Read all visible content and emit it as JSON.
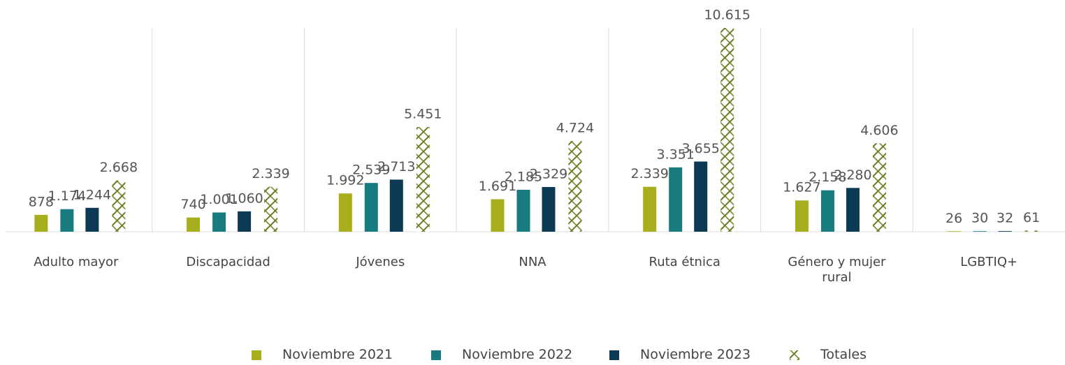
{
  "chart_data": {
    "type": "bar",
    "categories": [
      "Adulto mayor",
      "Discapacidad",
      "Jóvenes",
      "NNA",
      "Ruta étnica",
      "Género y mujer rural",
      "LGBTIQ+"
    ],
    "series": [
      {
        "name": "Noviembre 2021",
        "color": "#a8af1d",
        "values": [
          878,
          740,
          1992,
          1691,
          2339,
          1627,
          26
        ],
        "value_labels": [
          "878",
          "740",
          "1.992",
          "1.691",
          "2.339",
          "1.627",
          "26"
        ]
      },
      {
        "name": "Noviembre 2022",
        "color": "#177b7f",
        "values": [
          1174,
          1001,
          2539,
          2185,
          3351,
          2158,
          30
        ],
        "value_labels": [
          "1.174",
          "1.001",
          "2.539",
          "2.185",
          "3.351",
          "2.158",
          "30"
        ]
      },
      {
        "name": "Noviembre 2023",
        "color": "#0c3a54",
        "values": [
          1244,
          1060,
          2713,
          2329,
          3655,
          2280,
          32
        ],
        "value_labels": [
          "1.244",
          "1.060",
          "2.713",
          "2.329",
          "3.655",
          "2.280",
          "32"
        ]
      },
      {
        "name": "Totales",
        "color": "#6b7b1f",
        "pattern": "hatch",
        "values": [
          2668,
          2339,
          5451,
          4724,
          10615,
          4606,
          61
        ],
        "value_labels": [
          "2.668",
          "2.339",
          "5.451",
          "4.724",
          "10.615",
          "4.606",
          "61"
        ]
      }
    ]
  }
}
